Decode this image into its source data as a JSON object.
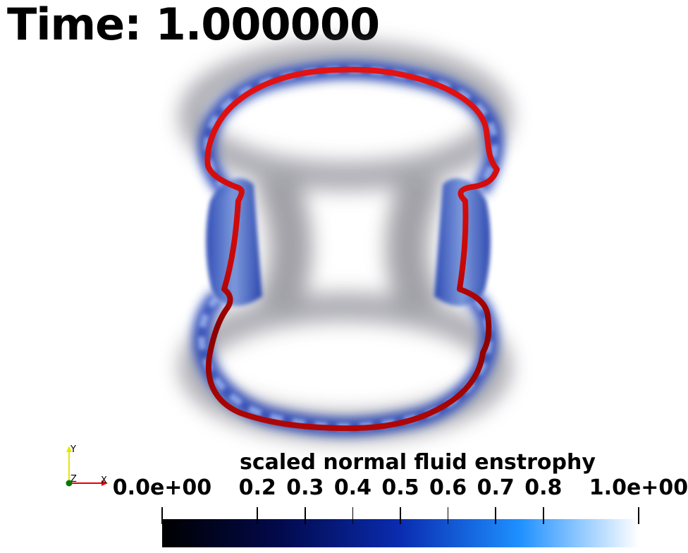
{
  "time_label": "Time: 1.000000",
  "axes": {
    "y": "Y",
    "x": "X",
    "z": "Z"
  },
  "colorbar": {
    "title": "scaled normal fluid enstrophy",
    "ticks": [
      {
        "value": 0.0,
        "label": "0.0e+00"
      },
      {
        "value": 0.2,
        "label": "0.2"
      },
      {
        "value": 0.3,
        "label": "0.3"
      },
      {
        "value": 0.4,
        "label": "0.4"
      },
      {
        "value": 0.5,
        "label": "0.5"
      },
      {
        "value": 0.6,
        "label": "0.6"
      },
      {
        "value": 0.7,
        "label": "0.7"
      },
      {
        "value": 0.8,
        "label": "0.8"
      },
      {
        "value": 1.0,
        "label": "1.0e+00"
      }
    ],
    "range": [
      0.0,
      1.0
    ],
    "colors": [
      "#000000",
      "#020a4d",
      "#0a2cb0",
      "#1e90ff",
      "#ffffff"
    ]
  },
  "colors": {
    "vortex_ring": "#e01010",
    "vortex_ring_dark": "#7a0000",
    "enstrophy_blue": "#1a3cb8",
    "axis_y": "#e6e600",
    "axis_x": "#e60000",
    "axis_z": "#007a00"
  }
}
